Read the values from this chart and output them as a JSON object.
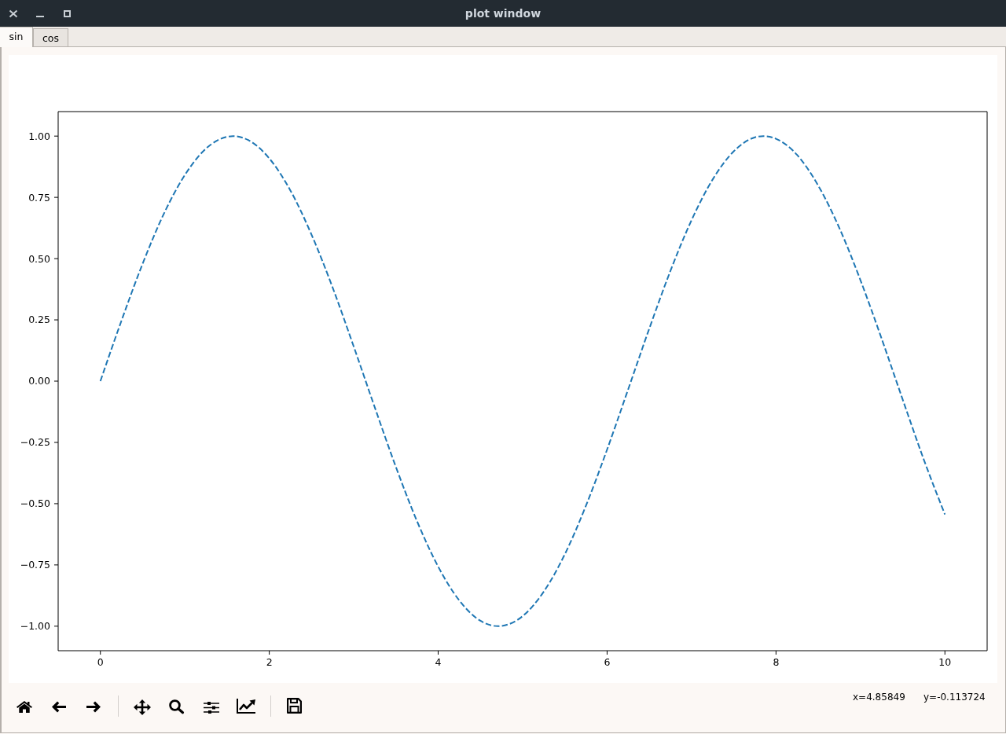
{
  "chart_data": {
    "type": "line",
    "title": "plot window",
    "annotations": [
      "sin",
      "cos",
      "x=4.85849",
      "y=-0.113724"
    ],
    "x": [
      0,
      0.25,
      0.5,
      0.75,
      1,
      1.25,
      1.5,
      1.57,
      1.75,
      2,
      2.25,
      2.5,
      2.75,
      3,
      3.25,
      3.5,
      3.75,
      4,
      4.25,
      4.5,
      4.71,
      4.75,
      5,
      5.25,
      5.5,
      5.75,
      6,
      6.25,
      6.5,
      6.75,
      7,
      7.25,
      7.5,
      7.75,
      7.85,
      8,
      8.25,
      8.5,
      8.75,
      9,
      9.25,
      9.5,
      9.75,
      10
    ],
    "series": [
      {
        "color": "#1f77b4",
        "values": [
          0,
          0.247,
          0.479,
          0.682,
          0.841,
          0.949,
          0.997,
          1.0,
          0.984,
          0.909,
          0.778,
          0.598,
          0.382,
          0.141,
          -0.108,
          -0.351,
          -0.572,
          -0.757,
          -0.895,
          -0.978,
          -1.0,
          -0.999,
          -0.959,
          -0.859,
          -0.706,
          -0.508,
          -0.279,
          -0.033,
          0.215,
          0.45,
          0.657,
          0.823,
          0.938,
          0.995,
          1.0,
          0.989,
          0.923,
          0.798,
          0.625,
          0.412,
          0.174,
          -0.075,
          -0.32,
          -0.544
        ]
      }
    ],
    "xlim": [
      -0.5,
      10.5
    ],
    "xticks": [
      0,
      2,
      4,
      6,
      8,
      10
    ],
    "ylim": [
      -1.1,
      1.1
    ],
    "yticks": [
      {
        "value": -1,
        "label": "−1.00"
      },
      {
        "value": -0.75,
        "label": "−0.75"
      },
      {
        "value": -0.5,
        "label": "−0.50"
      },
      {
        "value": -0.25,
        "label": "−0.25"
      },
      {
        "value": 0,
        "label": "0.00"
      },
      {
        "value": 0.25,
        "label": "0.25"
      },
      {
        "value": 0.5,
        "label": "0.50"
      },
      {
        "value": 0.75,
        "label": "0.75"
      },
      {
        "value": 1,
        "label": "1.00"
      }
    ],
    "marker": "none",
    "line_style": "dashed"
  }
}
